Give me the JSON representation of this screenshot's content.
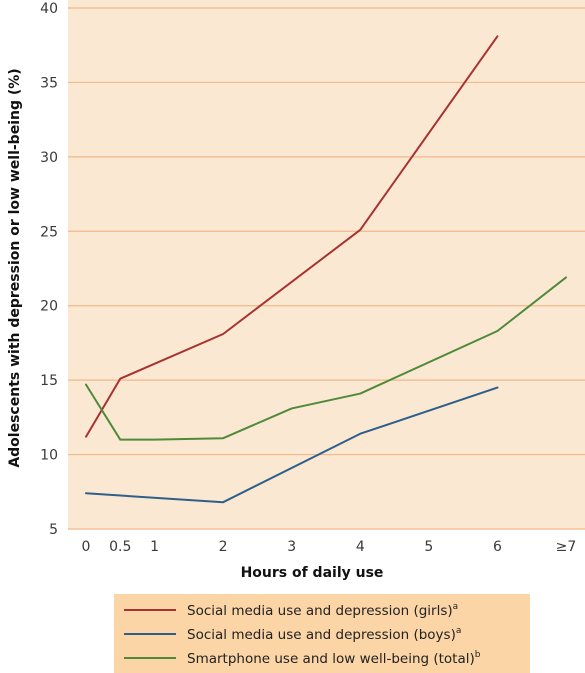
{
  "chart_data": {
    "type": "line",
    "xlabel": "Hours of daily use",
    "ylabel": "Adolescents with depression or low well-being (%)",
    "ylim": [
      5,
      40
    ],
    "xlim": [
      0,
      7
    ],
    "yticks": [
      "5",
      "10",
      "15",
      "20",
      "25",
      "30",
      "35",
      "40"
    ],
    "xticks": [
      {
        "x": 0,
        "label": "0"
      },
      {
        "x": 0.5,
        "label": "0.5"
      },
      {
        "x": 1,
        "label": "1"
      },
      {
        "x": 2,
        "label": "2"
      },
      {
        "x": 3,
        "label": "3"
      },
      {
        "x": 4,
        "label": "4"
      },
      {
        "x": 5,
        "label": "5"
      },
      {
        "x": 6,
        "label": "6"
      },
      {
        "x": 7,
        "label": "≥7"
      }
    ],
    "grid": "horizontal",
    "legend_position": "bottom",
    "series": [
      {
        "name": "Social media use and depression (girls)",
        "superscript": "a",
        "color": "#a83232",
        "points": [
          [
            0,
            11.2
          ],
          [
            0.5,
            15.1
          ],
          [
            2,
            18.1
          ],
          [
            4,
            25.1
          ],
          [
            6,
            38.1
          ]
        ]
      },
      {
        "name": "Social media use and depression (boys)",
        "superscript": "a",
        "color": "#2e5f8a",
        "points": [
          [
            0,
            7.4
          ],
          [
            2,
            6.8
          ],
          [
            4,
            11.4
          ],
          [
            6,
            14.5
          ]
        ]
      },
      {
        "name": "Smartphone use and low well-being (total)",
        "superscript": "b",
        "color": "#4f8a3a",
        "points": [
          [
            0,
            14.7
          ],
          [
            0.5,
            11.0
          ],
          [
            1,
            11.0
          ],
          [
            2,
            11.1
          ],
          [
            3,
            13.1
          ],
          [
            4,
            14.1
          ],
          [
            6,
            18.3
          ],
          [
            7,
            21.9
          ]
        ]
      }
    ]
  },
  "colors": {
    "plot_background": "#fbe8d2",
    "gridline": "#f2b98a",
    "legend_background": "#fbd5a6"
  }
}
